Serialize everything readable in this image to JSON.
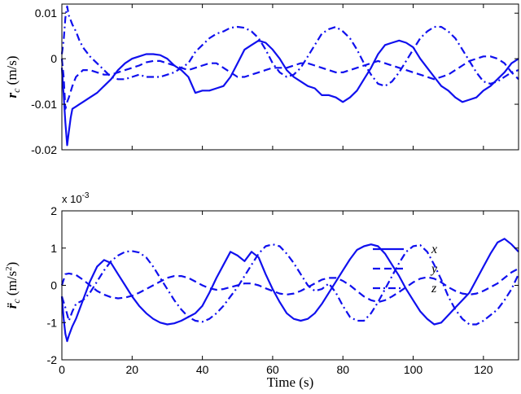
{
  "chart_data": [
    {
      "type": "line",
      "ylabel_main": "r",
      "ylabel_sub": "c",
      "ylabel_unit": " (m/s)",
      "xlim": [
        0,
        130
      ],
      "ylim": [
        -0.02,
        0.012
      ],
      "xticks": [
        0,
        20,
        40,
        60,
        80,
        100,
        120
      ],
      "xtick_labels": [
        "",
        "",
        "",
        "",
        "",
        "",
        ""
      ],
      "yticks": [
        -0.02,
        -0.01,
        0,
        0.01
      ],
      "ytick_labels": [
        "-0.02",
        "-0.01",
        "0",
        "0.01"
      ],
      "grid": false,
      "legend_position": "right",
      "series": [
        {
          "name": "x",
          "dash": "solid",
          "x": [
            0,
            0.5,
            1,
            1.5,
            2,
            2.5,
            3,
            4,
            5,
            6,
            8,
            10,
            12,
            14,
            16,
            18,
            20,
            22,
            24,
            26,
            28,
            30,
            32,
            34,
            36,
            38,
            40,
            42,
            44,
            46,
            48,
            50,
            52,
            54,
            56,
            58,
            60,
            62,
            64,
            66,
            68,
            70,
            72,
            74,
            76,
            78,
            80,
            82,
            84,
            86,
            88,
            90,
            92,
            94,
            96,
            98,
            100,
            102,
            104,
            106,
            108,
            110,
            112,
            114,
            116,
            118,
            120,
            122,
            124,
            126,
            128,
            130
          ],
          "y": [
            -0.002,
            -0.008,
            -0.014,
            -0.019,
            -0.016,
            -0.013,
            -0.011,
            -0.0105,
            -0.01,
            -0.0095,
            -0.0085,
            -0.0075,
            -0.006,
            -0.0045,
            -0.0025,
            -0.001,
            0.0,
            0.0005,
            0.001,
            0.001,
            0.0008,
            0.0,
            -0.0015,
            -0.0025,
            -0.004,
            -0.0075,
            -0.007,
            -0.007,
            -0.0065,
            -0.006,
            -0.004,
            -0.001,
            0.002,
            0.003,
            0.004,
            0.0035,
            0.002,
            0.0,
            -0.0025,
            -0.004,
            -0.005,
            -0.006,
            -0.0065,
            -0.008,
            -0.008,
            -0.0085,
            -0.0095,
            -0.0085,
            -0.007,
            -0.0045,
            -0.002,
            0.001,
            0.003,
            0.0035,
            0.004,
            0.0035,
            0.0025,
            0.0,
            -0.002,
            -0.004,
            -0.006,
            -0.007,
            -0.0085,
            -0.0095,
            -0.009,
            -0.0085,
            -0.007,
            -0.006,
            -0.0045,
            -0.003,
            -0.001,
            0.0
          ]
        },
        {
          "name": "y",
          "dash": "dashed",
          "x": [
            0,
            0.5,
            1,
            1.5,
            2,
            3,
            4,
            6,
            8,
            10,
            12,
            14,
            16,
            18,
            20,
            22,
            24,
            26,
            28,
            30,
            32,
            34,
            36,
            38,
            40,
            42,
            44,
            46,
            48,
            50,
            52,
            54,
            56,
            58,
            60,
            62,
            64,
            66,
            68,
            70,
            72,
            74,
            76,
            78,
            80,
            82,
            84,
            86,
            88,
            90,
            92,
            94,
            96,
            98,
            100,
            102,
            104,
            106,
            108,
            110,
            112,
            114,
            116,
            118,
            120,
            122,
            124,
            126,
            128,
            130
          ],
          "y": [
            0.0,
            -0.004,
            -0.011,
            -0.0095,
            -0.0085,
            -0.006,
            -0.004,
            -0.0025,
            -0.0025,
            -0.003,
            -0.0035,
            -0.0035,
            -0.003,
            -0.0025,
            -0.002,
            -0.0015,
            -0.0008,
            -0.0005,
            -0.0005,
            -0.001,
            -0.0015,
            -0.002,
            -0.0025,
            -0.002,
            -0.0015,
            -0.001,
            -0.001,
            -0.002,
            -0.003,
            -0.004,
            -0.004,
            -0.0035,
            -0.003,
            -0.0025,
            -0.002,
            -0.002,
            -0.002,
            -0.0015,
            -0.001,
            -0.001,
            -0.0015,
            -0.002,
            -0.0025,
            -0.003,
            -0.003,
            -0.0025,
            -0.002,
            -0.0015,
            -0.001,
            -0.0005,
            -0.001,
            -0.0015,
            -0.002,
            -0.0025,
            -0.003,
            -0.0035,
            -0.004,
            -0.0045,
            -0.004,
            -0.0035,
            -0.0025,
            -0.0015,
            -0.0005,
            0.0,
            0.0005,
            0.0005,
            0.0,
            -0.001,
            -0.003,
            -0.0045
          ]
        },
        {
          "name": "z",
          "dash": "dashdot",
          "x": [
            0,
            0.5,
            1,
            1.5,
            2,
            3,
            4,
            5,
            6,
            8,
            10,
            12,
            14,
            16,
            18,
            20,
            22,
            24,
            26,
            28,
            30,
            32,
            34,
            36,
            38,
            40,
            42,
            44,
            46,
            48,
            50,
            52,
            54,
            56,
            58,
            60,
            62,
            64,
            66,
            68,
            70,
            72,
            74,
            76,
            78,
            80,
            82,
            84,
            86,
            88,
            90,
            92,
            94,
            96,
            98,
            100,
            102,
            104,
            106,
            108,
            110,
            112,
            114,
            116,
            118,
            120,
            122,
            124,
            126,
            128,
            130
          ],
          "y": [
            0.001,
            0.004,
            0.009,
            0.0115,
            0.0095,
            0.0075,
            0.006,
            0.004,
            0.0025,
            0.0005,
            -0.001,
            -0.0025,
            -0.004,
            -0.0045,
            -0.0045,
            -0.004,
            -0.0035,
            -0.004,
            -0.004,
            -0.004,
            -0.0035,
            -0.003,
            -0.002,
            -0.001,
            0.0015,
            0.003,
            0.0045,
            0.0055,
            0.006,
            0.0068,
            0.007,
            0.0068,
            0.006,
            0.0045,
            0.002,
            -0.001,
            -0.003,
            -0.004,
            -0.0035,
            -0.002,
            0.0005,
            0.003,
            0.0055,
            0.0065,
            0.007,
            0.006,
            0.0045,
            0.002,
            -0.001,
            -0.0035,
            -0.0055,
            -0.006,
            -0.005,
            -0.003,
            -0.0005,
            0.002,
            0.0045,
            0.006,
            0.007,
            0.007,
            0.006,
            0.0045,
            0.002,
            -0.0005,
            -0.003,
            -0.005,
            -0.0055,
            -0.005,
            -0.004,
            -0.003,
            -0.0025
          ]
        }
      ]
    },
    {
      "type": "line",
      "ylabel_main": "r̈",
      "ylabel_sub": "c",
      "ylabel_unit": " (m/s",
      "ylabel_sup": "2",
      "ylabel_close": ")",
      "xlabel": "Time (s)",
      "exponent": "x 10",
      "exponent_power": "-3",
      "xlim": [
        0,
        130
      ],
      "ylim": [
        -2,
        2
      ],
      "xticks": [
        0,
        20,
        40,
        60,
        80,
        100,
        120
      ],
      "xtick_labels": [
        "0",
        "20",
        "40",
        "60",
        "80",
        "100",
        "120"
      ],
      "yticks": [
        -2,
        -1,
        0,
        1,
        2
      ],
      "ytick_labels": [
        "-2",
        "-1",
        "0",
        "1",
        "2"
      ],
      "grid": false,
      "series": [
        {
          "name": "x",
          "dash": "solid",
          "x": [
            0,
            0.5,
            1,
            1.5,
            2,
            3,
            4,
            6,
            8,
            10,
            12,
            14,
            16,
            18,
            20,
            22,
            24,
            26,
            28,
            30,
            32,
            34,
            36,
            38,
            40,
            42,
            44,
            46,
            48,
            50,
            52,
            54,
            56,
            58,
            60,
            62,
            64,
            66,
            68,
            70,
            72,
            74,
            76,
            78,
            80,
            82,
            84,
            86,
            88,
            90,
            92,
            94,
            96,
            98,
            100,
            102,
            104,
            106,
            108,
            110,
            112,
            114,
            116,
            118,
            120,
            122,
            124,
            126,
            128,
            130
          ],
          "y": [
            -0.3,
            -0.9,
            -1.3,
            -1.5,
            -1.35,
            -1.1,
            -0.9,
            -0.4,
            0.1,
            0.5,
            0.68,
            0.6,
            0.3,
            0.0,
            -0.3,
            -0.55,
            -0.75,
            -0.9,
            -1.0,
            -1.05,
            -1.02,
            -0.95,
            -0.85,
            -0.75,
            -0.55,
            -0.2,
            0.2,
            0.55,
            0.9,
            0.8,
            0.65,
            0.9,
            0.75,
            0.3,
            -0.1,
            -0.45,
            -0.75,
            -0.9,
            -0.95,
            -0.9,
            -0.75,
            -0.5,
            -0.2,
            0.1,
            0.4,
            0.7,
            0.95,
            1.05,
            1.1,
            1.05,
            0.85,
            0.55,
            0.25,
            -0.1,
            -0.4,
            -0.7,
            -0.9,
            -1.05,
            -1.0,
            -0.8,
            -0.6,
            -0.4,
            -0.2,
            0.15,
            0.5,
            0.85,
            1.15,
            1.25,
            1.1,
            0.9
          ]
        },
        {
          "name": "y",
          "dash": "dashed",
          "x": [
            0,
            1,
            2,
            4,
            6,
            8,
            10,
            12,
            14,
            16,
            18,
            20,
            22,
            24,
            26,
            28,
            30,
            32,
            34,
            36,
            38,
            40,
            42,
            44,
            46,
            48,
            50,
            52,
            54,
            56,
            58,
            60,
            62,
            64,
            66,
            68,
            70,
            72,
            74,
            76,
            78,
            80,
            82,
            84,
            86,
            88,
            90,
            92,
            94,
            96,
            98,
            100,
            102,
            104,
            106,
            108,
            110,
            112,
            114,
            116,
            118,
            120,
            122,
            124,
            126,
            128,
            130
          ],
          "y": [
            0.0,
            0.3,
            0.32,
            0.28,
            0.15,
            0.0,
            -0.15,
            -0.25,
            -0.32,
            -0.35,
            -0.33,
            -0.28,
            -0.2,
            -0.1,
            0.0,
            0.1,
            0.2,
            0.25,
            0.25,
            0.2,
            0.1,
            0.0,
            -0.08,
            -0.12,
            -0.1,
            -0.05,
            0.0,
            0.05,
            0.05,
            0.0,
            -0.08,
            -0.15,
            -0.22,
            -0.25,
            -0.22,
            -0.15,
            -0.05,
            0.05,
            0.15,
            0.2,
            0.2,
            0.12,
            0.0,
            -0.15,
            -0.3,
            -0.4,
            -0.45,
            -0.4,
            -0.3,
            -0.18,
            -0.05,
            0.08,
            0.18,
            0.22,
            0.18,
            0.08,
            -0.05,
            -0.15,
            -0.22,
            -0.25,
            -0.22,
            -0.15,
            -0.05,
            0.05,
            0.2,
            0.35,
            0.45
          ]
        },
        {
          "name": "z",
          "dash": "dashdot",
          "x": [
            0,
            1,
            2,
            3,
            4,
            6,
            8,
            10,
            12,
            14,
            16,
            18,
            20,
            22,
            24,
            26,
            28,
            30,
            32,
            34,
            36,
            38,
            40,
            42,
            44,
            46,
            48,
            50,
            52,
            54,
            56,
            58,
            60,
            62,
            64,
            66,
            68,
            70,
            72,
            74,
            76,
            78,
            80,
            82,
            84,
            86,
            88,
            90,
            92,
            94,
            96,
            98,
            100,
            102,
            104,
            106,
            108,
            110,
            112,
            114,
            116,
            118,
            120,
            122,
            124,
            126,
            128,
            130
          ],
          "y": [
            -0.3,
            -0.6,
            -0.95,
            -0.7,
            -0.5,
            -0.4,
            -0.2,
            0.1,
            0.4,
            0.65,
            0.8,
            0.9,
            0.92,
            0.88,
            0.75,
            0.5,
            0.2,
            -0.1,
            -0.4,
            -0.65,
            -0.85,
            -0.95,
            -0.98,
            -0.9,
            -0.75,
            -0.55,
            -0.3,
            -0.05,
            0.25,
            0.55,
            0.85,
            1.05,
            1.1,
            1.05,
            0.85,
            0.6,
            0.3,
            0.0,
            -0.15,
            -0.1,
            0.05,
            -0.2,
            -0.55,
            -0.85,
            -0.95,
            -0.95,
            -0.75,
            -0.45,
            -0.1,
            0.25,
            0.6,
            0.9,
            1.05,
            1.08,
            0.9,
            0.55,
            0.15,
            -0.3,
            -0.65,
            -0.9,
            -1.05,
            -1.05,
            -0.95,
            -0.8,
            -0.65,
            -0.4,
            -0.1,
            0.3
          ]
        }
      ]
    }
  ]
}
